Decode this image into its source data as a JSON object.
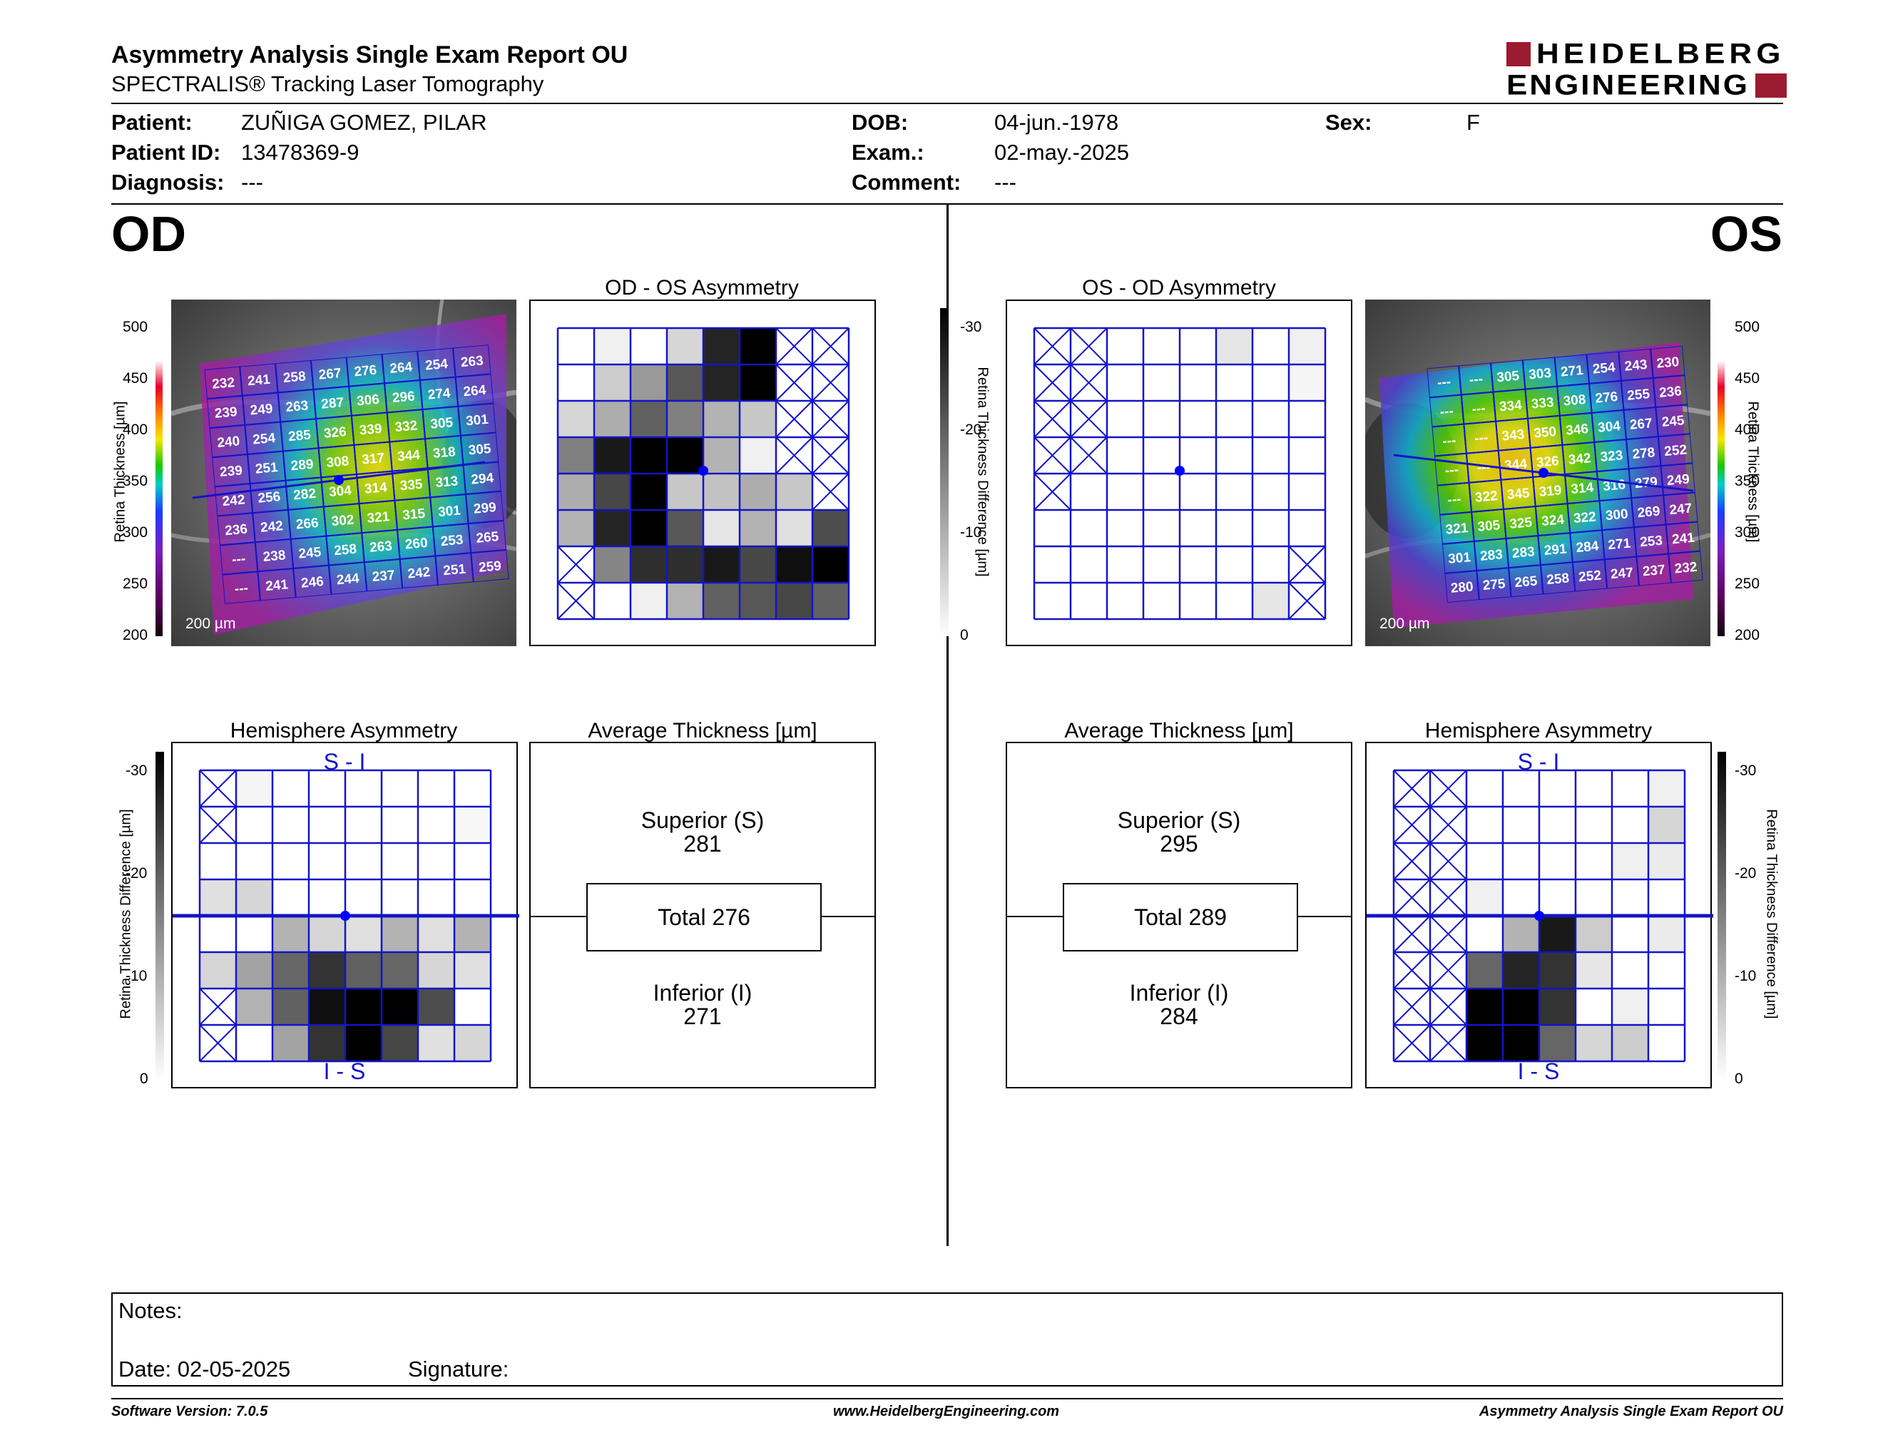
{
  "header": {
    "title": "Asymmetry Analysis Single Exam Report OU",
    "subtitle": "SPECTRALIS® Tracking Laser Tomography",
    "logo_line1": "HEIDELBERG",
    "logo_line2": "ENGINEERING",
    "logo_color": "#9b1b30"
  },
  "patient": {
    "patient_label": "Patient:",
    "patient_value": "ZUÑIGA GOMEZ, PILAR",
    "id_label": "Patient ID:",
    "id_value": "13478369-9",
    "diagnosis_label": "Diagnosis:",
    "diagnosis_value": "---",
    "dob_label": "DOB:",
    "dob_value": "04-jun.-1978",
    "exam_label": "Exam.:",
    "exam_value": "02-may.-2025",
    "comment_label": "Comment:",
    "comment_value": "---",
    "sex_label": "Sex:",
    "sex_value": "F"
  },
  "od": {
    "eye_label": "OD",
    "scale_label": "200 µm",
    "asym_title": "OD - OS Asymmetry",
    "hemi_title": "Hemisphere Asymmetry",
    "avg_title": "Average Thickness [µm]",
    "superior_label": "Superior (S)",
    "superior_value": "281",
    "total_label": "Total 276",
    "inferior_label": "Inferior (I)",
    "inferior_value": "271",
    "si_label": "S - I",
    "is_label": "I - S",
    "thickness_grid": [
      [
        "232",
        "241",
        "258",
        "267",
        "276",
        "264",
        "254",
        "263"
      ],
      [
        "239",
        "249",
        "263",
        "287",
        "306",
        "296",
        "274",
        "264"
      ],
      [
        "240",
        "254",
        "285",
        "326",
        "339",
        "332",
        "305",
        "301"
      ],
      [
        "239",
        "251",
        "289",
        "308",
        "317",
        "344",
        "318",
        "305"
      ],
      [
        "242",
        "256",
        "282",
        "304",
        "314",
        "335",
        "313",
        "294"
      ],
      [
        "236",
        "242",
        "266",
        "302",
        "321",
        "315",
        "301",
        "299"
      ],
      [
        "---",
        "238",
        "245",
        "258",
        "263",
        "260",
        "253",
        "265"
      ],
      [
        "---",
        "241",
        "246",
        "244",
        "237",
        "242",
        "251",
        "259"
      ]
    ],
    "asym_grid": [
      [
        0,
        0.06,
        0,
        0.16,
        0.86,
        1,
        "x",
        "x"
      ],
      [
        0,
        0.2,
        0.4,
        0.66,
        0.86,
        1,
        "x",
        "x"
      ],
      [
        0.16,
        0.32,
        0.62,
        0.5,
        0.3,
        0.22,
        "x",
        "x"
      ],
      [
        0.5,
        0.9,
        1,
        1,
        0.3,
        0.06,
        "x",
        "x"
      ],
      [
        0.32,
        0.72,
        1,
        0.22,
        0.24,
        0.32,
        0.22,
        "x"
      ],
      [
        0.3,
        0.86,
        1,
        0.66,
        0.1,
        0.3,
        0.12,
        0.7
      ],
      [
        "x",
        0.48,
        0.82,
        0.82,
        0.9,
        0.72,
        0.94,
        1
      ],
      [
        "x",
        0,
        0.06,
        0.3,
        0.62,
        0.66,
        0.72,
        0.62
      ]
    ],
    "hemi_grid": [
      [
        "x",
        0.04,
        0,
        0,
        0,
        0,
        0,
        0
      ],
      [
        "x",
        0,
        0,
        0,
        0,
        0,
        0,
        0.03
      ],
      [
        0,
        0,
        0,
        0,
        0,
        0,
        0,
        0
      ],
      [
        0.12,
        0.16,
        0,
        0,
        0,
        0,
        0,
        0
      ],
      [
        0,
        0,
        0.3,
        0.16,
        0.12,
        0.3,
        0.12,
        0.3
      ],
      [
        0.16,
        0.36,
        0.6,
        0.8,
        0.62,
        0.6,
        0.16,
        0.12
      ],
      [
        "x",
        0.3,
        0.62,
        0.94,
        1,
        1,
        0.7,
        0
      ],
      [
        "x",
        0,
        0.36,
        0.8,
        1,
        0.72,
        0.12,
        0.16
      ]
    ]
  },
  "os": {
    "eye_label": "OS",
    "scale_label": "200 µm",
    "asym_title": "OS - OD Asymmetry",
    "hemi_title": "Hemisphere Asymmetry",
    "avg_title": "Average Thickness [µm]",
    "superior_label": "Superior (S)",
    "superior_value": "295",
    "total_label": "Total 289",
    "inferior_label": "Inferior (I)",
    "inferior_value": "284",
    "si_label": "S - I",
    "is_label": "I - S",
    "thickness_grid": [
      [
        "---",
        "---",
        "305",
        "303",
        "271",
        "254",
        "243",
        "230"
      ],
      [
        "---",
        "---",
        "334",
        "333",
        "308",
        "276",
        "255",
        "236"
      ],
      [
        "---",
        "---",
        "343",
        "350",
        "346",
        "304",
        "267",
        "245"
      ],
      [
        "---",
        "---",
        "344",
        "326",
        "342",
        "323",
        "278",
        "252"
      ],
      [
        "---",
        "322",
        "345",
        "319",
        "314",
        "316",
        "279",
        "249"
      ],
      [
        "321",
        "305",
        "325",
        "324",
        "322",
        "300",
        "269",
        "247"
      ],
      [
        "301",
        "283",
        "283",
        "291",
        "284",
        "271",
        "253",
        "241"
      ],
      [
        "280",
        "275",
        "265",
        "258",
        "252",
        "247",
        "237",
        "232"
      ]
    ],
    "asym_grid": [
      [
        "x",
        "x",
        0,
        0,
        0,
        0.1,
        0,
        0.06
      ],
      [
        "x",
        "x",
        0,
        0,
        0,
        0,
        0,
        0.04
      ],
      [
        "x",
        "x",
        0,
        0,
        0,
        0,
        0,
        0
      ],
      [
        "x",
        "x",
        0,
        0,
        0,
        0,
        0,
        0
      ],
      [
        "x",
        0,
        0,
        0,
        0,
        0,
        0,
        0
      ],
      [
        0,
        0,
        0,
        0,
        0,
        0,
        0,
        0
      ],
      [
        0,
        0,
        0,
        0,
        0,
        0,
        0,
        "x"
      ],
      [
        0,
        0,
        0,
        0,
        0,
        0,
        0.1,
        "x"
      ]
    ],
    "hemi_grid": [
      [
        "x",
        "x",
        0,
        0,
        0,
        0,
        0,
        0.06
      ],
      [
        "x",
        "x",
        0,
        0,
        0,
        0,
        0,
        0.16
      ],
      [
        "x",
        "x",
        0,
        0,
        0,
        0,
        0.06,
        0.08
      ],
      [
        "x",
        "x",
        0.06,
        0,
        0,
        0,
        0,
        0
      ],
      [
        "x",
        "x",
        0,
        0.3,
        0.9,
        0.2,
        0,
        0.08
      ],
      [
        "x",
        "x",
        0.6,
        0.86,
        0.8,
        0.1,
        0,
        0
      ],
      [
        "x",
        "x",
        1,
        1,
        0.8,
        0,
        0.06,
        0
      ],
      [
        "x",
        "x",
        1,
        1,
        0.6,
        0.16,
        0.2,
        0
      ]
    ]
  },
  "thickness_scale": {
    "ticks": [
      "500",
      "450",
      "400",
      "350",
      "300",
      "250",
      "200"
    ],
    "title": "Retina  Thickness [µm]"
  },
  "diff_scale": {
    "ticks": [
      "-30",
      "-20",
      "-10",
      "0"
    ],
    "title": "Retina Thickness Difference [µm]"
  },
  "notes": {
    "notes_label": "Notes:",
    "date_label": "Date: 02-05-2025",
    "signature_label": "Signature:"
  },
  "footer": {
    "software": "Software Version: 7.0.5",
    "website": "www.HeidelbergEngineering.com",
    "report_name": "Asymmetry Analysis Single Exam Report OU"
  },
  "colors": {
    "grid_blue": "#1414c8",
    "marker_blue": "#0000ff",
    "logo_red": "#9b1b30"
  }
}
